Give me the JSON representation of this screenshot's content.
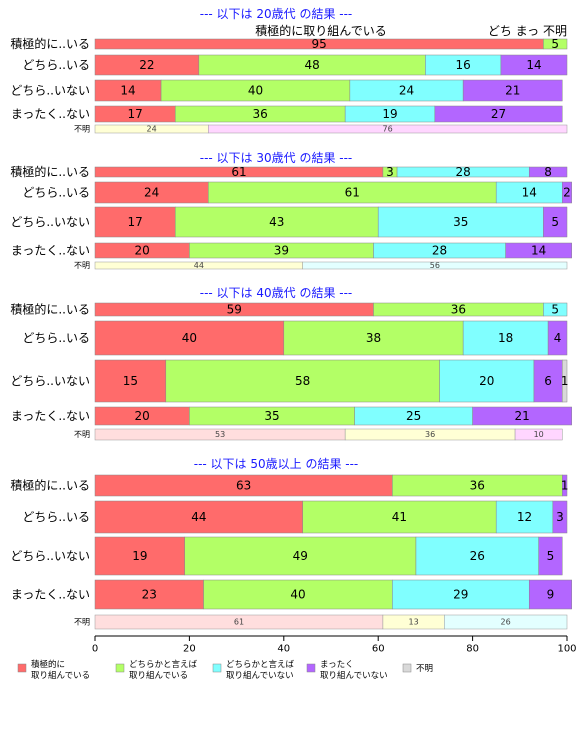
{
  "chart_data": {
    "type": "bar",
    "orientation": "horizontal",
    "stacked": "percent",
    "xlim": [
      0,
      100
    ],
    "xticks": [
      0,
      20,
      40,
      60,
      80,
      100
    ],
    "colors": {
      "c1": "#ff6b6b",
      "c2": "#b3ff66",
      "c3": "#80ffff",
      "c4": "#b366ff",
      "unk": "#d9d9d9",
      "unk1": "#ffdede",
      "unk2": "#ffffd5",
      "unk3": "#e3ffff",
      "unk4": "#ffd6ff"
    },
    "legend": {
      "placement": "bottom",
      "entries": [
        {
          "lines": [
            "積極的に",
            "取り組んでいる"
          ],
          "color": "c1"
        },
        {
          "lines": [
            "どちらかと言えば",
            "取り組んでいる"
          ],
          "color": "c2"
        },
        {
          "lines": [
            "どちらかと言えば",
            "取り組んでいない"
          ],
          "color": "c3"
        },
        {
          "lines": [
            "まったく",
            "取り組んでいない"
          ],
          "color": "c4"
        },
        {
          "lines": [
            "不明"
          ],
          "color": "unk"
        }
      ]
    },
    "panel_top_annotations": {
      "center": "積極的に取り組んでいる",
      "right": "どち まっ 不明"
    },
    "panels": [
      {
        "title": "--- 以下は 20歳代 の結果 ---",
        "rows": [
          {
            "label": "積極的に..いる",
            "values": [
              95,
              5,
              0,
              0
            ]
          },
          {
            "label": "どちら..いる",
            "values": [
              22,
              48,
              16,
              14
            ]
          },
          {
            "label": "どちら..いない",
            "values": [
              14,
              40,
              24,
              21
            ]
          },
          {
            "label": "まったく..ない",
            "values": [
              17,
              36,
              19,
              27
            ]
          }
        ],
        "unknown": {
          "label": "不明",
          "values": [
            24,
            76
          ],
          "colors": [
            "unk2",
            "unk4"
          ]
        }
      },
      {
        "title": "--- 以下は 30歳代 の結果 ---",
        "rows": [
          {
            "label": "積極的に..いる",
            "values": [
              61,
              3,
              28,
              8
            ]
          },
          {
            "label": "どちら..いる",
            "values": [
              24,
              61,
              14,
              2
            ]
          },
          {
            "label": "どちら..いない",
            "values": [
              17,
              43,
              35,
              5
            ]
          },
          {
            "label": "まったく..ない",
            "values": [
              20,
              39,
              28,
              14
            ]
          }
        ],
        "unknown": {
          "label": "不明",
          "values": [
            44,
            56
          ],
          "colors": [
            "unk2",
            "unk3"
          ]
        }
      },
      {
        "title": "--- 以下は 40歳代 の結果 ---",
        "rows": [
          {
            "label": "積極的に..いる",
            "values": [
              59,
              36,
              5,
              0
            ]
          },
          {
            "label": "どちら..いる",
            "values": [
              40,
              38,
              18,
              4
            ]
          },
          {
            "label": "どちら..いない",
            "values": [
              15,
              58,
              20,
              6,
              1
            ]
          },
          {
            "label": "まったく..ない",
            "values": [
              20,
              35,
              25,
              21
            ]
          }
        ],
        "unknown": {
          "label": "不明",
          "values": [
            53,
            36,
            10
          ],
          "colors": [
            "unk1",
            "unk2",
            "unk4"
          ]
        }
      },
      {
        "title": "--- 以下は 50歳以上 の結果 ---",
        "rows": [
          {
            "label": "積極的に..いる",
            "values": [
              63,
              36,
              0,
              1
            ]
          },
          {
            "label": "どちら..いる",
            "values": [
              44,
              41,
              12,
              3
            ]
          },
          {
            "label": "どちら..いない",
            "values": [
              19,
              49,
              26,
              5
            ]
          },
          {
            "label": "まったく..ない",
            "values": [
              23,
              40,
              29,
              9
            ]
          }
        ],
        "unknown": {
          "label": "不明",
          "values": [
            61,
            13,
            26
          ],
          "colors": [
            "unk1",
            "unk2",
            "unk3"
          ]
        }
      }
    ]
  }
}
